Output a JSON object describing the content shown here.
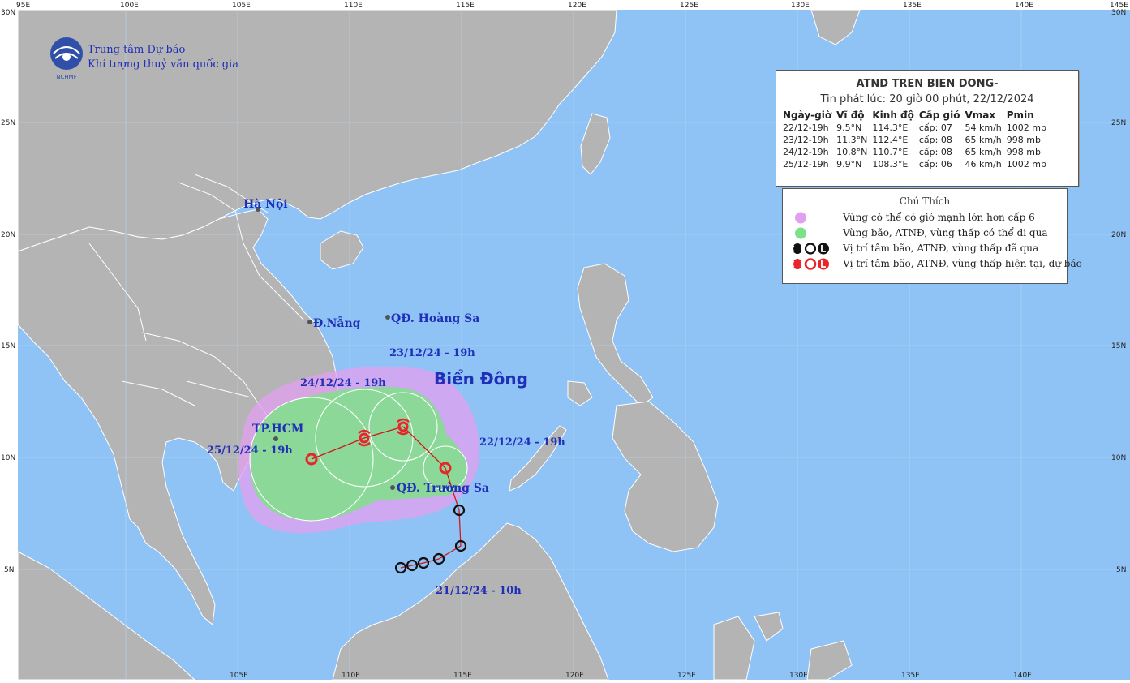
{
  "header": {
    "org_line1": "Trung tâm Dự báo",
    "org_line2": "Khí tượng thuỷ văn quốc gia",
    "logo_text": "NCHMF"
  },
  "grid": {
    "lon_labels": [
      "95E",
      "100E",
      "105E",
      "110E",
      "115E",
      "120E",
      "125E",
      "130E",
      "135E",
      "140E",
      "145E"
    ],
    "lat_labels": [
      "30N",
      "25N",
      "20N",
      "15N",
      "10N",
      "5N"
    ],
    "bottom_lon_labels": [
      "105E",
      "110E",
      "115E",
      "120E",
      "125E",
      "130E",
      "135E",
      "140E"
    ]
  },
  "map_labels": {
    "sea": "Biển Đông",
    "ha_noi": "Hà Nội",
    "da_nang": "Đ.Nẵng",
    "hoang_sa": "QĐ. Hoàng Sa",
    "tp_hcm": "TP.HCM",
    "truong_sa": "QĐ. Trường Sa"
  },
  "track_labels": {
    "d2212": "22/12/24 - 19h",
    "d2312": "23/12/24 - 19h",
    "d2412": "24/12/24 - 19h",
    "d2512": "25/12/24 - 19h",
    "d2112": "21/12/24 - 10h"
  },
  "info_box": {
    "title": "ATND TREN BIEN DONG-",
    "issued": "Tin phát lúc: 20 giờ 00 phút, 22/12/2024",
    "headers": [
      "Ngày-giờ",
      "Vĩ độ",
      "Kinh độ",
      "Cấp gió",
      "Vmax",
      "Pmin"
    ],
    "rows": [
      [
        "22/12-19h",
        "9.5°N",
        "114.3°E",
        "cấp: 07",
        "54 km/h",
        "1002 mb"
      ],
      [
        "23/12-19h",
        "11.3°N",
        "112.4°E",
        "cấp: 08",
        "65 km/h",
        "998 mb"
      ],
      [
        "24/12-19h",
        "10.8°N",
        "110.7°E",
        "cấp: 08",
        "65 km/h",
        "998 mb"
      ],
      [
        "25/12-19h",
        "9.9°N",
        "108.3°E",
        "cấp: 06",
        "46 km/h",
        "1002 mb"
      ]
    ]
  },
  "legend": {
    "title": "Chú Thích",
    "items": [
      "Vùng có thể có gió mạnh lớn hơn cấp 6",
      "Vùng bão, ATNĐ, vùng thấp có thể đi qua",
      "Vị trí tâm bão, ATNĐ, vùng thấp đã qua",
      "Vị trí tâm bão, ATNĐ, vùng thấp hiện tại, dự báo"
    ],
    "colors": {
      "wind_zone": "#e0a0ee",
      "storm_zone": "#7fe08a",
      "past": "#111111",
      "forecast": "#e8252a"
    }
  },
  "colors": {
    "sea": "#8fc3f6",
    "land": "#b4b4b4",
    "border": "#ffffff",
    "track": "#d01818",
    "label": "#1f2fb8"
  }
}
